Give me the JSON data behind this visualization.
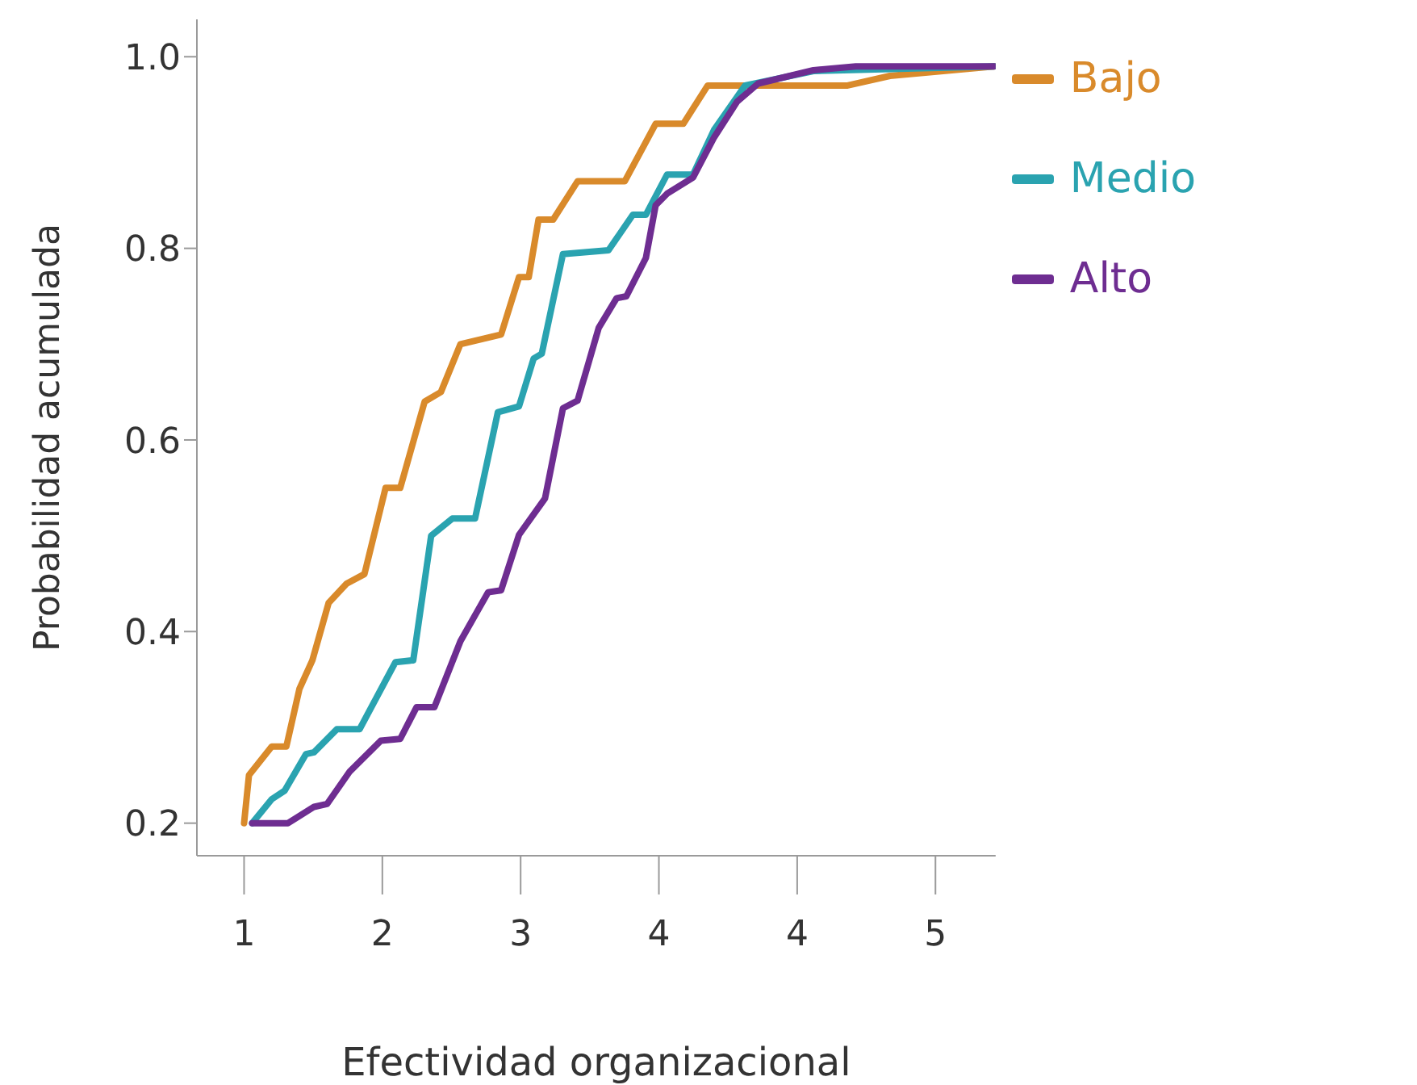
{
  "chart_data": {
    "type": "line",
    "xlabel": "Efectividad organizacional",
    "ylabel": "Probabilidad acumulada",
    "xlim": [
      0.71,
      5.62
    ],
    "ylim": [
      0.166,
      1.039
    ],
    "xticks": [
      1,
      {
        "value": 1.85,
        "label": "2"
      },
      {
        "value": 2.7,
        "label": "3"
      },
      {
        "value": 3.55,
        "label": "4"
      },
      {
        "value": 4.4,
        "label": "4"
      },
      {
        "value": 5.25,
        "label": "5"
      }
    ],
    "yticks": [
      0.2,
      0.4,
      0.6,
      0.8,
      {
        "value": 1,
        "label": "1.0"
      }
    ],
    "legend": "top right",
    "marker": "none",
    "line_style": "solid",
    "series": [
      {
        "name": "Bajo",
        "color": "#d98a2b",
        "x": [
          1.0,
          1.03,
          1.17,
          1.26,
          1.34,
          1.42,
          1.52,
          1.63,
          1.74,
          1.87,
          1.96,
          2.11,
          2.21,
          2.33,
          2.58,
          2.69,
          2.75,
          2.81,
          2.9,
          3.05,
          3.34,
          3.53,
          3.7,
          3.85,
          4.71,
          4.97,
          5.61
        ],
        "values": [
          0.2,
          0.25,
          0.28,
          0.28,
          0.34,
          0.37,
          0.43,
          0.45,
          0.46,
          0.55,
          0.55,
          0.64,
          0.65,
          0.7,
          0.71,
          0.77,
          0.77,
          0.83,
          0.83,
          0.87,
          0.87,
          0.93,
          0.93,
          0.97,
          0.97,
          0.98,
          0.99
        ]
      },
      {
        "name": "Medio",
        "color": "#2aa3b0",
        "x": [
          1.05,
          1.17,
          1.25,
          1.38,
          1.43,
          1.57,
          1.71,
          1.93,
          2.04,
          2.15,
          2.28,
          2.42,
          2.56,
          2.69,
          2.78,
          2.83,
          2.96,
          3.24,
          3.39,
          3.47,
          3.6,
          3.76,
          3.89,
          4.08,
          4.5,
          5.61
        ],
        "values": [
          0.2,
          0.225,
          0.234,
          0.272,
          0.274,
          0.298,
          0.298,
          0.368,
          0.37,
          0.5,
          0.518,
          0.518,
          0.629,
          0.635,
          0.685,
          0.69,
          0.794,
          0.798,
          0.835,
          0.835,
          0.877,
          0.877,
          0.924,
          0.97,
          0.985,
          0.99
        ]
      },
      {
        "name": "Alto",
        "color": "#6e2d91",
        "x": [
          1.05,
          1.27,
          1.43,
          1.51,
          1.65,
          1.84,
          1.96,
          2.06,
          2.17,
          2.33,
          2.5,
          2.58,
          2.69,
          2.85,
          2.96,
          3.05,
          3.18,
          3.29,
          3.35,
          3.47,
          3.53,
          3.6,
          3.76,
          3.89,
          4.03,
          4.16,
          4.5,
          4.76,
          5.61
        ],
        "values": [
          0.2,
          0.2,
          0.217,
          0.22,
          0.254,
          0.286,
          0.288,
          0.321,
          0.321,
          0.39,
          0.441,
          0.443,
          0.501,
          0.539,
          0.633,
          0.641,
          0.717,
          0.748,
          0.75,
          0.79,
          0.845,
          0.857,
          0.874,
          0.916,
          0.953,
          0.972,
          0.986,
          0.99,
          0.99
        ]
      }
    ]
  }
}
